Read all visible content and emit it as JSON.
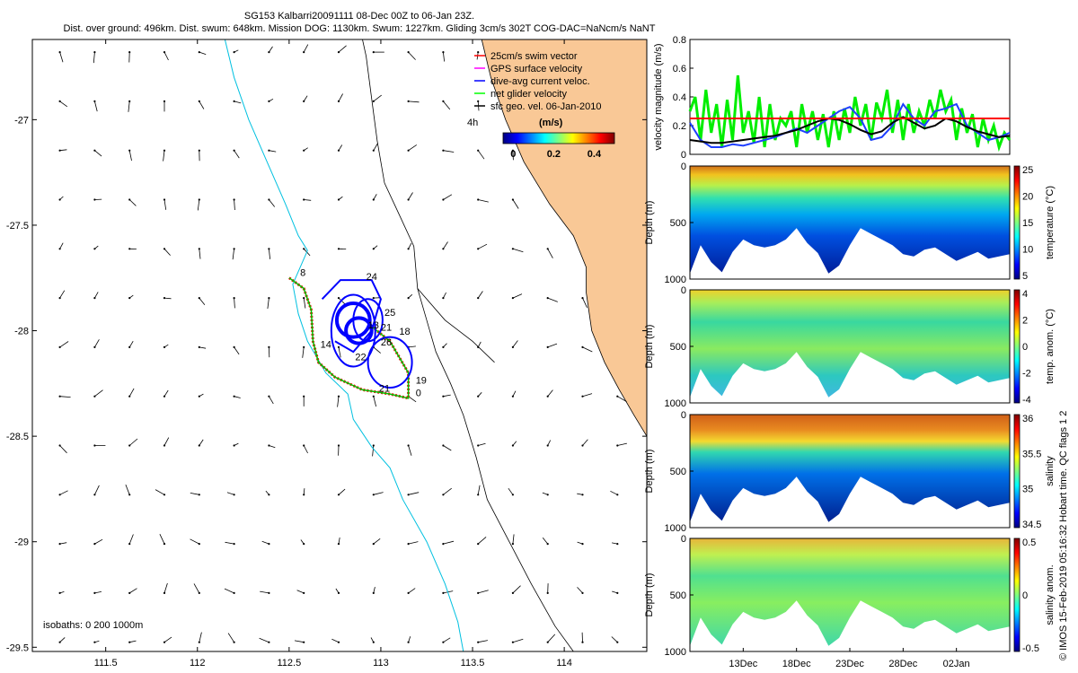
{
  "header": {
    "line1": "SG153 Kalbarri20091111 08-Dec 00Z to 06-Jan 23Z.",
    "line2": "Dist. over ground: 496km. Dist. swum: 648km. Mission DOG: 1130km. Swum: 1227km. Gliding 3cm/s 302T COG-DAC=NaNcm/s NaNT"
  },
  "credit": "© IMOS 15-Feb-2019 05:16:32 Hobart time. QC flags 1 2",
  "colors": {
    "land": "#F9C896",
    "isobath": "#00C0E0",
    "coast": "#000000",
    "track_red": "#FF0000",
    "track_blue": "#0000FF",
    "track_green": "#00C000",
    "vel_green": "#00EE00",
    "vel_red": "#FF0000"
  },
  "chart_data": [
    {
      "type": "map",
      "xlim": [
        111.1,
        114.45
      ],
      "ylim": [
        -29.52,
        -26.62
      ],
      "xticks": [
        "111.5",
        "112",
        "112.5",
        "113",
        "113.5",
        "114"
      ],
      "yticks": [
        "-27",
        "-27.5",
        "-28",
        "-28.5",
        "-29",
        "-29.5"
      ],
      "legend": {
        "items": [
          "25cm/s swim vector",
          "GPS surface velocity",
          "dive-avg current veloc.",
          "net glider velocity",
          "sfc geo. vel. 06-Jan-2010"
        ],
        "colors": [
          "#FF0000",
          "#FF00FF",
          "#0000FF",
          "#00FF00",
          "#000000"
        ],
        "note": "4h",
        "cbar_title": "(m/s)",
        "cbar_ticks": [
          "0",
          "0.2",
          "0.4"
        ],
        "cbar_range": [
          -0.05,
          0.5
        ]
      },
      "isobath_label": "isobaths: 0   200  1000m",
      "track_labels": [
        {
          "t": "8",
          "lon": 112.56,
          "lat": -27.74
        },
        {
          "t": "24",
          "lon": 112.92,
          "lat": -27.76
        },
        {
          "t": "25",
          "lon": 113.02,
          "lat": -27.93
        },
        {
          "t": "13",
          "lon": 112.93,
          "lat": -27.99
        },
        {
          "t": "21",
          "lon": 113.0,
          "lat": -28.0
        },
        {
          "t": "18",
          "lon": 113.1,
          "lat": -28.02
        },
        {
          "t": "26",
          "lon": 113.0,
          "lat": -28.07
        },
        {
          "t": "14",
          "lon": 112.67,
          "lat": -28.08
        },
        {
          "t": "22",
          "lon": 112.86,
          "lat": -28.14
        },
        {
          "t": "19",
          "lon": 113.19,
          "lat": -28.25
        },
        {
          "t": "21",
          "lon": 112.99,
          "lat": -28.29
        },
        {
          "t": "0",
          "lon": 113.19,
          "lat": -28.31
        }
      ]
    },
    {
      "type": "line",
      "ylabel": "velocity magnitude (m/s)",
      "ylim": [
        0,
        0.8
      ],
      "yticks": [
        "0",
        "0.2",
        "0.4",
        "0.6",
        "0.8"
      ],
      "xlim": [
        0,
        30
      ],
      "reference_line": 0.25,
      "series": [
        {
          "color": "#00EE00",
          "x": [
            0,
            0.5,
            1,
            1.5,
            2,
            2.5,
            3,
            3.5,
            4,
            4.5,
            5,
            5.5,
            6,
            6.5,
            7,
            7.5,
            8,
            8.5,
            9,
            9.5,
            10,
            10.5,
            11,
            11.5,
            12,
            12.5,
            13,
            13.5,
            14,
            14.5,
            15,
            15.5,
            16,
            16.5,
            17,
            17.5,
            18,
            18.5,
            19,
            19.5,
            20,
            20.5,
            21,
            21.5,
            22,
            22.5,
            23,
            23.5,
            24,
            24.5,
            25,
            25.5,
            26,
            26.5,
            27,
            27.5,
            28,
            28.5,
            29,
            29.5,
            30
          ],
          "values": [
            0.3,
            0.4,
            0.1,
            0.45,
            0.15,
            0.35,
            0.05,
            0.38,
            0.1,
            0.55,
            0.15,
            0.3,
            0.08,
            0.4,
            0.05,
            0.35,
            0.1,
            0.25,
            0.2,
            0.3,
            0.05,
            0.35,
            0.15,
            0.3,
            0.1,
            0.28,
            0.05,
            0.3,
            0.1,
            0.32,
            0.15,
            0.4,
            0.2,
            0.35,
            0.1,
            0.36,
            0.25,
            0.45,
            0.15,
            0.38,
            0.1,
            0.35,
            0.15,
            0.3,
            0.2,
            0.38,
            0.25,
            0.45,
            0.3,
            0.38,
            0.1,
            0.32,
            0.15,
            0.28,
            0.05,
            0.25,
            0.1,
            0.2,
            0.05,
            0.15,
            0.1
          ]
        },
        {
          "color": "#1F3FFF",
          "x": [
            0,
            1,
            2,
            3,
            4,
            5,
            6,
            7,
            8,
            9,
            10,
            11,
            12,
            13,
            14,
            15,
            16,
            17,
            18,
            19,
            20,
            21,
            22,
            23,
            24,
            25,
            26,
            27,
            28,
            29,
            30
          ],
          "values": [
            0.22,
            0.1,
            0.05,
            0.05,
            0.07,
            0.06,
            0.08,
            0.1,
            0.12,
            0.15,
            0.18,
            0.15,
            0.2,
            0.25,
            0.3,
            0.33,
            0.25,
            0.1,
            0.12,
            0.2,
            0.35,
            0.25,
            0.2,
            0.3,
            0.32,
            0.35,
            0.2,
            0.15,
            0.1,
            0.12,
            0.15
          ]
        },
        {
          "color": "#000000",
          "x": [
            0,
            1,
            2,
            3,
            4,
            5,
            6,
            7,
            8,
            9,
            10,
            11,
            12,
            13,
            14,
            15,
            16,
            17,
            18,
            19,
            20,
            21,
            22,
            23,
            24,
            25,
            26,
            27,
            28,
            29,
            30
          ],
          "values": [
            0.1,
            0.09,
            0.08,
            0.08,
            0.09,
            0.1,
            0.11,
            0.12,
            0.13,
            0.15,
            0.17,
            0.2,
            0.23,
            0.25,
            0.24,
            0.21,
            0.17,
            0.14,
            0.16,
            0.22,
            0.26,
            0.22,
            0.18,
            0.2,
            0.25,
            0.23,
            0.19,
            0.16,
            0.14,
            0.12,
            0.13
          ]
        }
      ]
    },
    {
      "type": "heatmap",
      "panels": [
        {
          "ylabel": "Depth (m)",
          "cbar_label": "temperature (°C)",
          "cbar_ticks": [
            "25",
            "20",
            "15",
            "10",
            "5"
          ]
        },
        {
          "ylabel": "Depth (m)",
          "cbar_label": "temp. anom. (°C)",
          "cbar_ticks": [
            "4",
            "2",
            "0",
            "-2",
            "-4"
          ]
        },
        {
          "ylabel": "Depth (m)",
          "cbar_label": "salinity",
          "cbar_ticks": [
            "36",
            "35.5",
            "35",
            "34.5"
          ]
        },
        {
          "ylabel": "Depth (m)",
          "cbar_label": "salinity anom.",
          "cbar_ticks": [
            "0.5",
            "0",
            "-0.5"
          ]
        }
      ],
      "ylim": [
        0,
        1000
      ],
      "yticks": [
        "0",
        "500",
        "1000"
      ],
      "xticks": [
        "13Dec",
        "18Dec",
        "23Dec",
        "28Dec",
        "02Jan"
      ],
      "xtick_days": [
        5,
        10,
        15,
        20,
        25
      ],
      "xlim": [
        0,
        30
      ],
      "max_depth_profile": [
        {
          "x": 0,
          "d": 950
        },
        {
          "x": 1,
          "d": 700
        },
        {
          "x": 2,
          "d": 850
        },
        {
          "x": 3,
          "d": 940
        },
        {
          "x": 4,
          "d": 760
        },
        {
          "x": 5,
          "d": 650
        },
        {
          "x": 6,
          "d": 700
        },
        {
          "x": 7,
          "d": 720
        },
        {
          "x": 8,
          "d": 700
        },
        {
          "x": 9,
          "d": 650
        },
        {
          "x": 10,
          "d": 550
        },
        {
          "x": 11,
          "d": 680
        },
        {
          "x": 12,
          "d": 770
        },
        {
          "x": 13,
          "d": 950
        },
        {
          "x": 14,
          "d": 880
        },
        {
          "x": 15,
          "d": 700
        },
        {
          "x": 16,
          "d": 550
        },
        {
          "x": 17,
          "d": 600
        },
        {
          "x": 18,
          "d": 650
        },
        {
          "x": 19,
          "d": 700
        },
        {
          "x": 20,
          "d": 780
        },
        {
          "x": 21,
          "d": 800
        },
        {
          "x": 22,
          "d": 740
        },
        {
          "x": 23,
          "d": 720
        },
        {
          "x": 24,
          "d": 780
        },
        {
          "x": 25,
          "d": 840
        },
        {
          "x": 26,
          "d": 800
        },
        {
          "x": 27,
          "d": 760
        },
        {
          "x": 28,
          "d": 820
        },
        {
          "x": 29,
          "d": 800
        },
        {
          "x": 30,
          "d": 780
        }
      ]
    }
  ]
}
